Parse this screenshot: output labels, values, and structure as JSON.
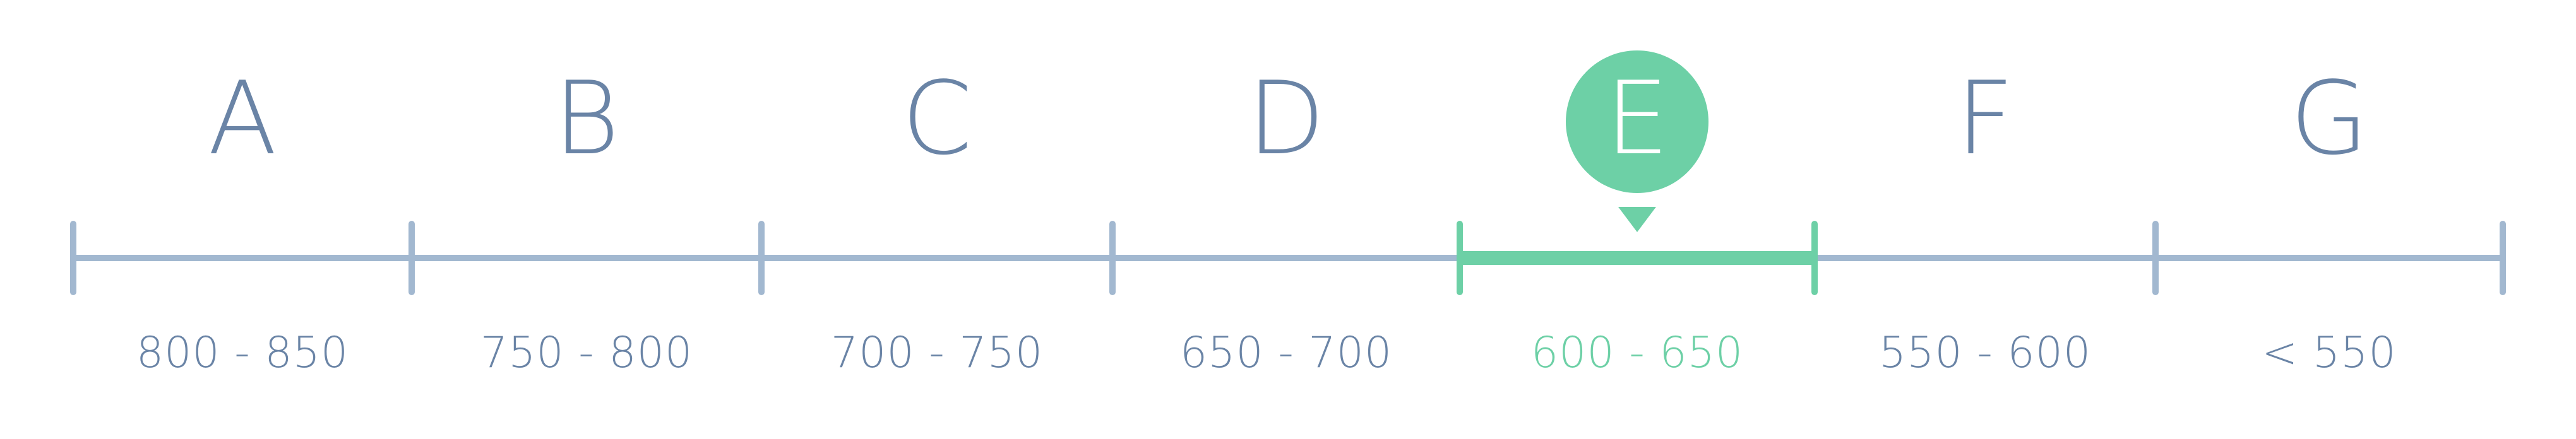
{
  "scale": {
    "bands": [
      {
        "grade": "A",
        "range": "800 - 850",
        "active": false
      },
      {
        "grade": "B",
        "range": "750 - 800",
        "active": false
      },
      {
        "grade": "C",
        "range": "700 - 750",
        "active": false
      },
      {
        "grade": "D",
        "range": "650 - 700",
        "active": false
      },
      {
        "grade": "E",
        "range": "600 - 650",
        "active": true
      },
      {
        "grade": "F",
        "range": "550 - 600",
        "active": false
      },
      {
        "grade": "G",
        "range": "< 550",
        "active": false
      }
    ],
    "colors": {
      "inactive": "#6a84a6",
      "track": "#a2b8d0",
      "active": "#6dd0a6"
    }
  }
}
